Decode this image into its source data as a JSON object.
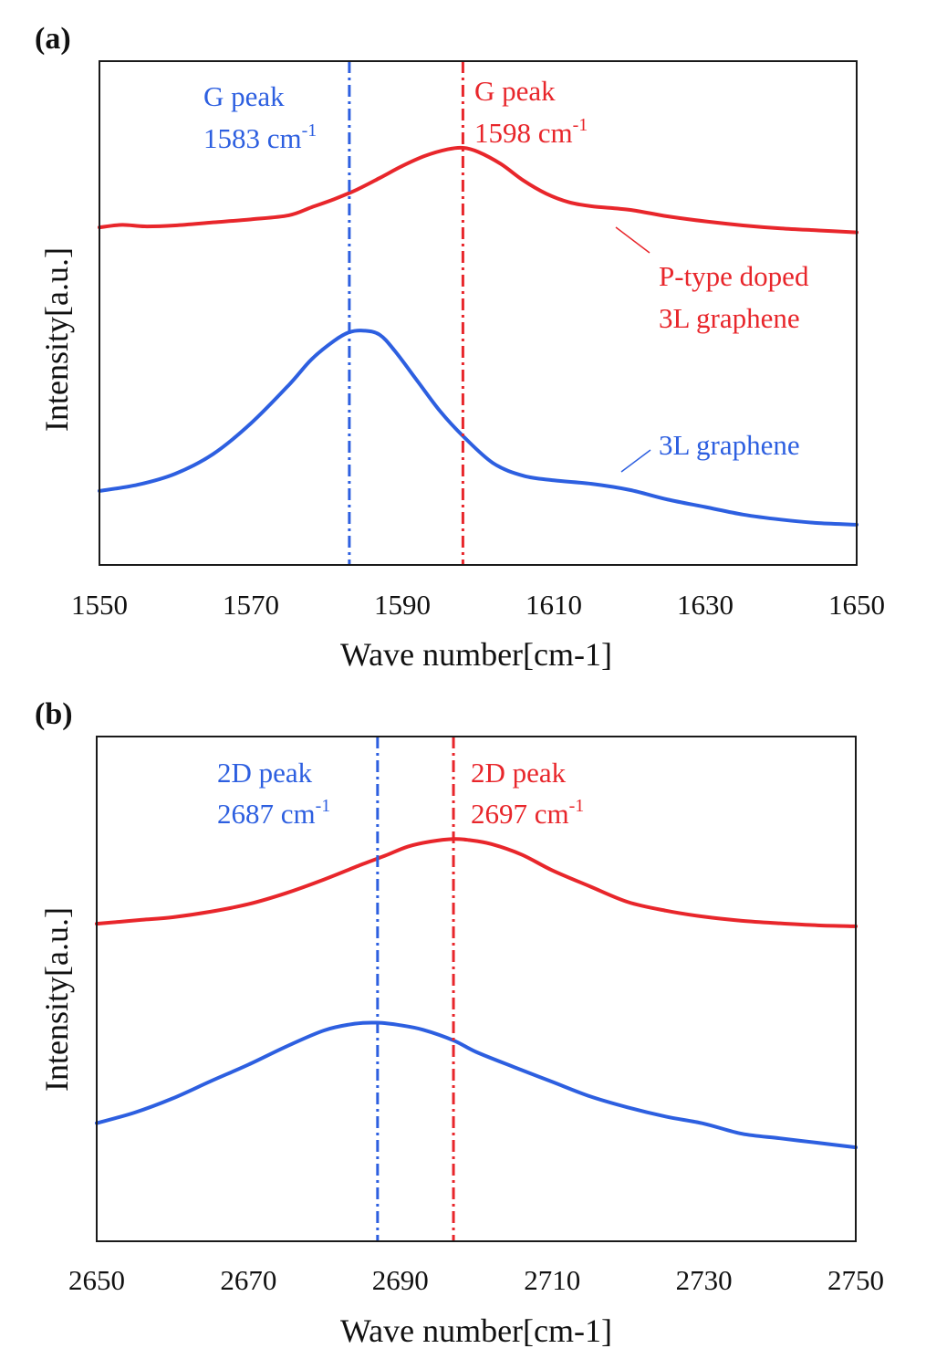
{
  "figure": {
    "panels": [
      {
        "label": "(a)"
      },
      {
        "label": "(b)"
      }
    ]
  },
  "colors": {
    "red": "#e8262b",
    "blue": "#2d5fe0",
    "axis": "#1a1a1a",
    "background": "#ffffff"
  },
  "chart_data": [
    {
      "type": "line",
      "panel": "(a)",
      "xlabel": "Wave number[cm-1]",
      "ylabel": "Intensity[a.u.]",
      "xlim": [
        1550,
        1650
      ],
      "ylim": [
        0,
        1
      ],
      "xticks": [
        1550,
        1570,
        1590,
        1610,
        1630,
        1650
      ],
      "grid": false,
      "series": [
        {
          "name": "P-type doped 3L graphene",
          "color": "#e8262b",
          "x": [
            1550,
            1553,
            1556,
            1560,
            1565,
            1570,
            1575,
            1578,
            1581,
            1584,
            1587,
            1590,
            1593,
            1596,
            1598,
            1600,
            1603,
            1606,
            1609,
            1612,
            1615,
            1620,
            1625,
            1630,
            1635,
            1640,
            1645,
            1650
          ],
          "y": [
            0.67,
            0.675,
            0.672,
            0.674,
            0.68,
            0.686,
            0.694,
            0.71,
            0.726,
            0.745,
            0.768,
            0.792,
            0.812,
            0.825,
            0.828,
            0.82,
            0.796,
            0.763,
            0.737,
            0.72,
            0.712,
            0.705,
            0.692,
            0.682,
            0.674,
            0.668,
            0.664,
            0.66
          ]
        },
        {
          "name": "3L graphene",
          "color": "#2d5fe0",
          "x": [
            1550,
            1555,
            1560,
            1565,
            1570,
            1575,
            1578,
            1581,
            1583,
            1585,
            1587,
            1589,
            1592,
            1595,
            1598,
            1602,
            1606,
            1610,
            1615,
            1620,
            1625,
            1630,
            1635,
            1640,
            1645,
            1650
          ],
          "y": [
            0.147,
            0.159,
            0.181,
            0.22,
            0.281,
            0.357,
            0.408,
            0.445,
            0.462,
            0.465,
            0.457,
            0.425,
            0.365,
            0.305,
            0.256,
            0.202,
            0.177,
            0.168,
            0.161,
            0.149,
            0.13,
            0.115,
            0.1,
            0.09,
            0.083,
            0.08
          ]
        }
      ],
      "annotations": [
        {
          "name": "g-peak-blue",
          "color": "#2d5fe0",
          "x": 1583,
          "line1": "G peak",
          "line2_base": "1583 cm",
          "line2_sup": "-1"
        },
        {
          "name": "g-peak-red",
          "color": "#e8262b",
          "x": 1598,
          "line1": "G peak",
          "line2_base": "1598 cm",
          "line2_sup": "-1"
        }
      ],
      "labels": [
        {
          "name": "label-p-type",
          "color": "#e8262b",
          "lines": [
            "P-type doped",
            "3L graphene"
          ]
        },
        {
          "name": "label-3l",
          "color": "#2d5fe0",
          "lines": [
            "3L graphene"
          ]
        }
      ]
    },
    {
      "type": "line",
      "panel": "(b)",
      "xlabel": "Wave number[cm-1]",
      "ylabel": "Intensity[a.u.]",
      "xlim": [
        2650,
        2750
      ],
      "ylim": [
        0,
        1
      ],
      "xticks": [
        2650,
        2670,
        2690,
        2710,
        2730,
        2750
      ],
      "grid": false,
      "series": [
        {
          "name": "P-type doped 3L graphene",
          "color": "#e8262b",
          "x": [
            2650,
            2653,
            2656,
            2660,
            2665,
            2670,
            2675,
            2680,
            2685,
            2688,
            2691,
            2694,
            2697,
            2699,
            2702,
            2706,
            2710,
            2715,
            2720,
            2725,
            2730,
            2735,
            2740,
            2745,
            2750
          ],
          "y": [
            0.629,
            0.633,
            0.637,
            0.642,
            0.653,
            0.668,
            0.69,
            0.717,
            0.747,
            0.764,
            0.782,
            0.792,
            0.797,
            0.795,
            0.787,
            0.766,
            0.735,
            0.703,
            0.672,
            0.655,
            0.643,
            0.635,
            0.63,
            0.626,
            0.624
          ]
        },
        {
          "name": "3L graphene",
          "color": "#2d5fe0",
          "x": [
            2650,
            2655,
            2660,
            2665,
            2670,
            2675,
            2680,
            2684,
            2687,
            2690,
            2693,
            2697,
            2700,
            2705,
            2710,
            2715,
            2720,
            2725,
            2730,
            2735,
            2740,
            2745,
            2750
          ],
          "y": [
            0.234,
            0.255,
            0.283,
            0.317,
            0.35,
            0.386,
            0.418,
            0.431,
            0.433,
            0.428,
            0.419,
            0.398,
            0.375,
            0.345,
            0.316,
            0.287,
            0.265,
            0.247,
            0.233,
            0.213,
            0.204,
            0.195,
            0.186
          ]
        }
      ],
      "annotations": [
        {
          "name": "2d-peak-blue",
          "color": "#2d5fe0",
          "x": 2687,
          "line1": "2D peak",
          "line2_base": "2687 cm",
          "line2_sup": "-1"
        },
        {
          "name": "2d-peak-red",
          "color": "#e8262b",
          "x": 2697,
          "line1": "2D peak",
          "line2_base": "2697 cm",
          "line2_sup": "-1"
        }
      ]
    }
  ]
}
